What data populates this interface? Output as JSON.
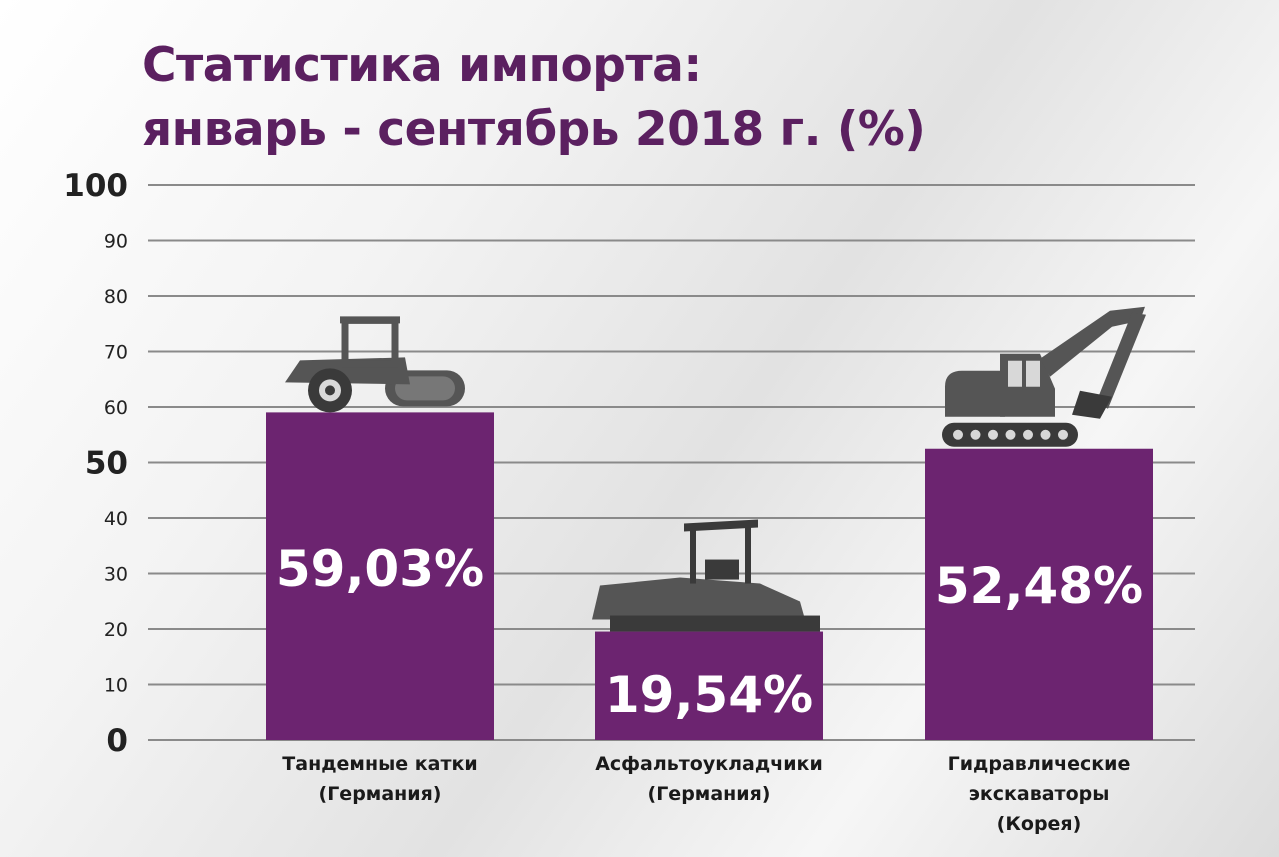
{
  "chart_data": {
    "type": "bar",
    "title_lines": [
      "Статистика импорта:",
      "январь - сентябрь 2018 г. (%)"
    ],
    "categories": [
      [
        "Тандемные катки",
        "(Германия)"
      ],
      [
        "Асфальтоукладчики",
        "(Германия)"
      ],
      [
        "Гидравлические",
        "экскаваторы",
        "(Корея)"
      ]
    ],
    "values": [
      59.03,
      19.54,
      52.48
    ],
    "value_labels": [
      "59,03%",
      "19,54%",
      "52,48%"
    ],
    "ylim": [
      0,
      100
    ],
    "yticks": [
      0,
      10,
      20,
      30,
      40,
      50,
      60,
      70,
      80,
      90,
      100
    ],
    "grid": true,
    "bar_color": "#6c2470",
    "icons": [
      "tandem-roller-icon",
      "asphalt-paver-icon",
      "excavator-icon"
    ]
  }
}
